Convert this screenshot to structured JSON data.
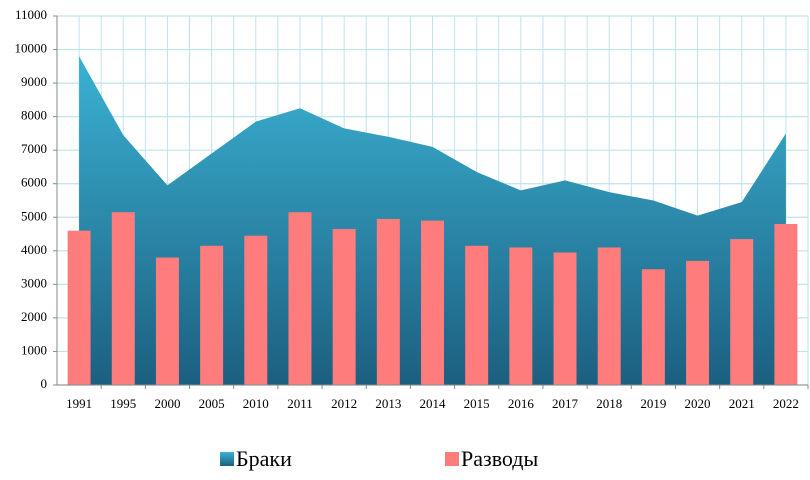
{
  "chart_data": {
    "type": "area_bar",
    "categories": [
      "1991",
      "1995",
      "2000",
      "2005",
      "2010",
      "2011",
      "2012",
      "2013",
      "2014",
      "2015",
      "2016",
      "2017",
      "2018",
      "2019",
      "2020",
      "2021",
      "2022"
    ],
    "series": [
      {
        "name": "Браки",
        "type": "area",
        "color": "#2a9ec2",
        "values": [
          9800,
          7450,
          5950,
          6900,
          7850,
          8250,
          7650,
          7400,
          7100,
          6350,
          5800,
          6100,
          5750,
          5500,
          5050,
          5450,
          7500
        ]
      },
      {
        "name": "Разводы",
        "type": "bar",
        "color": "#ff7c7c",
        "values": [
          4600,
          5150,
          3800,
          4150,
          4450,
          5150,
          4650,
          4950,
          4900,
          4150,
          4100,
          3950,
          4100,
          3450,
          3700,
          4350,
          4800
        ]
      }
    ],
    "ylim": [
      0,
      11000
    ],
    "yticks": [
      0,
      1000,
      2000,
      3000,
      4000,
      5000,
      6000,
      7000,
      8000,
      9000,
      10000,
      11000
    ],
    "grid": true,
    "legend": "bottom"
  }
}
